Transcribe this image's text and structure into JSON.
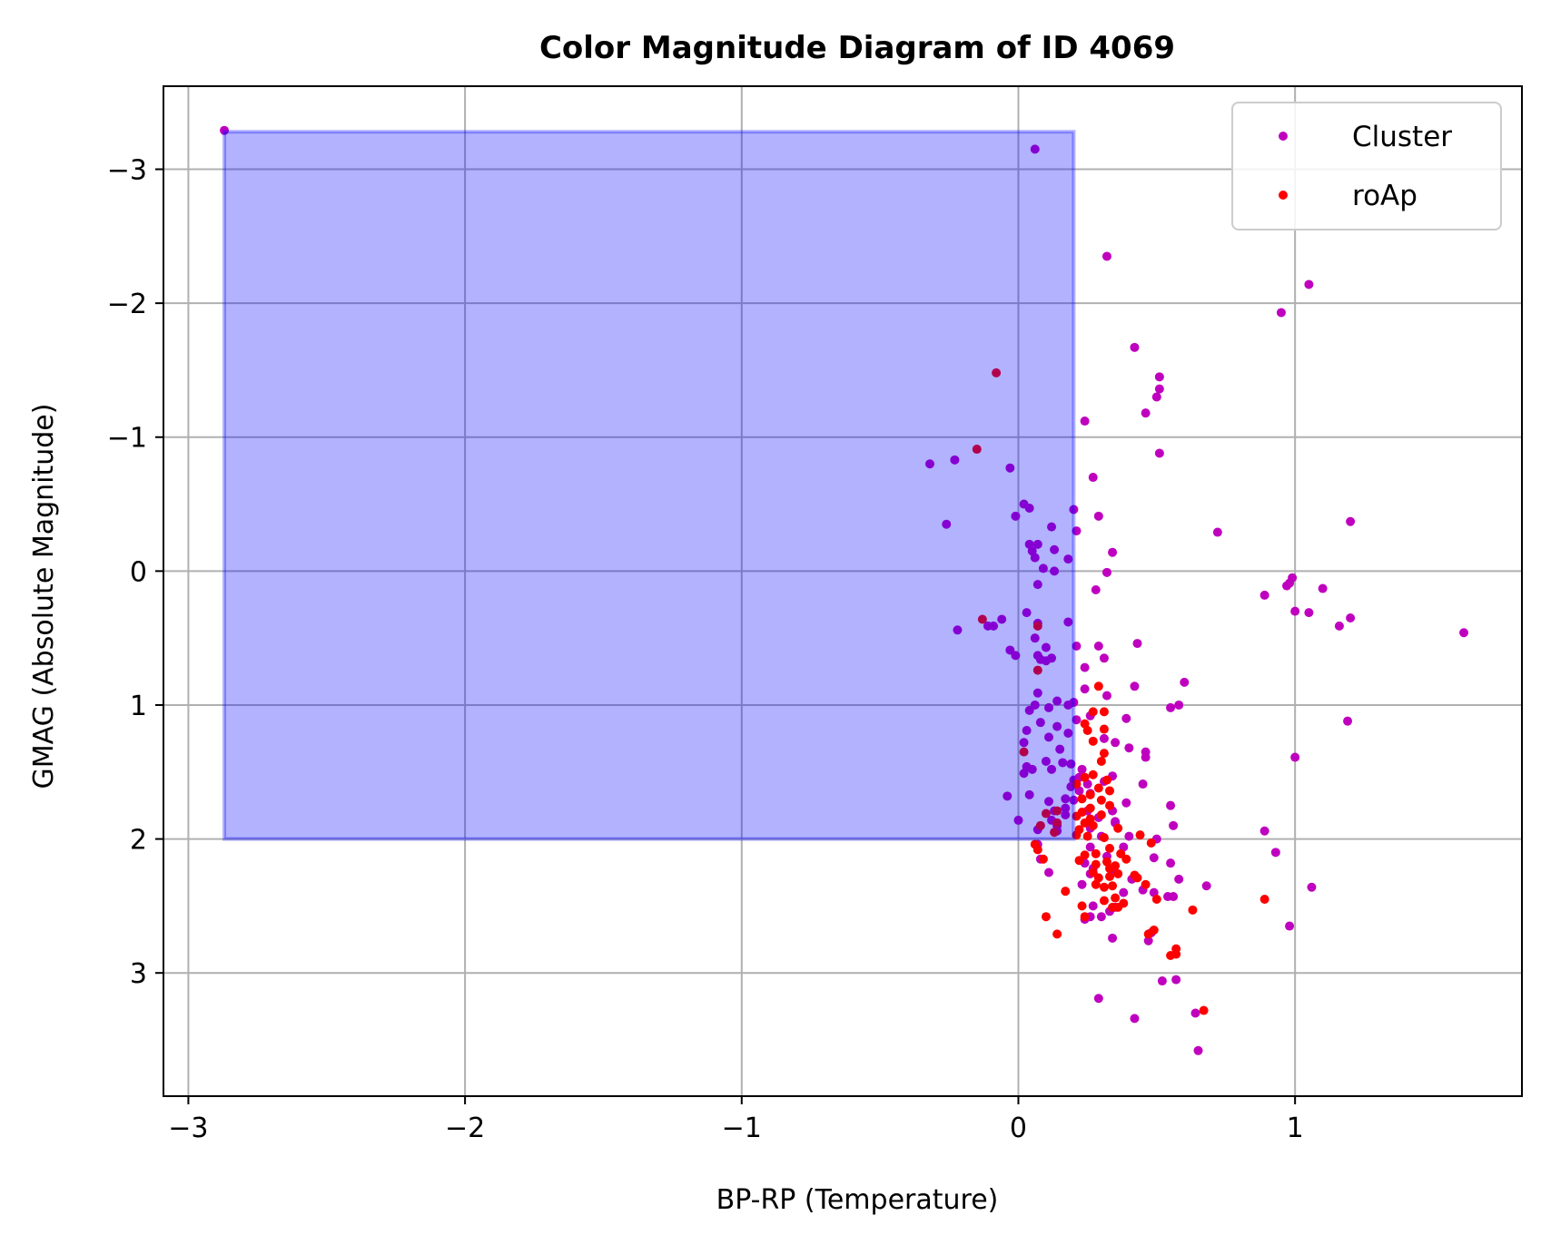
{
  "chart_data": {
    "type": "scatter",
    "title": "Color Magnitude Diagram of ID 4069",
    "xlabel": "BP-RP (Temperature)",
    "ylabel": "GMAG (Absolute Magnitude)",
    "xlim": [
      -3.09,
      1.82
    ],
    "ylim": [
      3.92,
      -3.62
    ],
    "y_inverted": true,
    "grid": true,
    "legend_position": "upper right",
    "x_ticks": [
      -3,
      -2,
      -1,
      0,
      1
    ],
    "x_tick_labels": [
      "−3",
      "−2",
      "−1",
      "0",
      "1"
    ],
    "y_ticks": [
      -3,
      -2,
      -1,
      0,
      1,
      2,
      3
    ],
    "y_tick_labels": [
      "−3",
      "−2",
      "−1",
      "0",
      "1",
      "2",
      "3"
    ],
    "region": {
      "x": [
        -2.87,
        0.2
      ],
      "y": [
        -3.28,
        2.0
      ],
      "color": "#0000ff",
      "opacity": 0.3
    },
    "series": [
      {
        "name": "Cluster",
        "color": "#bf00bf",
        "points": [
          [
            -2.87,
            -3.29
          ],
          [
            0.06,
            -3.15
          ],
          [
            0.32,
            -2.35
          ],
          [
            1.05,
            -2.14
          ],
          [
            0.95,
            -1.93
          ],
          [
            0.42,
            -1.67
          ],
          [
            0.51,
            -1.45
          ],
          [
            0.51,
            -1.36
          ],
          [
            0.5,
            -1.3
          ],
          [
            0.46,
            -1.18
          ],
          [
            0.24,
            -1.12
          ],
          [
            0.51,
            -0.88
          ],
          [
            -0.32,
            -0.8
          ],
          [
            -0.23,
            -0.83
          ],
          [
            -0.03,
            -0.77
          ],
          [
            0.27,
            -0.7
          ],
          [
            0.02,
            -0.5
          ],
          [
            -0.26,
            -0.35
          ],
          [
            0.04,
            -0.47
          ],
          [
            0.29,
            -0.41
          ],
          [
            1.2,
            -0.37
          ],
          [
            0.72,
            -0.29
          ],
          [
            0.2,
            -0.46
          ],
          [
            -0.01,
            -0.41
          ],
          [
            0.07,
            -0.2
          ],
          [
            0.04,
            -0.2
          ],
          [
            0.05,
            -0.15
          ],
          [
            0.12,
            -0.33
          ],
          [
            0.34,
            -0.14
          ],
          [
            0.13,
            -0.16
          ],
          [
            0.21,
            -0.3
          ],
          [
            0.06,
            -0.1
          ],
          [
            0.13,
            0.0
          ],
          [
            0.18,
            -0.09
          ],
          [
            0.09,
            -0.02
          ],
          [
            0.32,
            0.01
          ],
          [
            0.07,
            0.1
          ],
          [
            0.98,
            0.09
          ],
          [
            0.99,
            0.05
          ],
          [
            0.97,
            0.11
          ],
          [
            1.1,
            0.13
          ],
          [
            0.28,
            0.14
          ],
          [
            0.89,
            0.18
          ],
          [
            0.03,
            0.31
          ],
          [
            1.0,
            0.3
          ],
          [
            1.05,
            0.31
          ],
          [
            1.2,
            0.35
          ],
          [
            1.16,
            0.41
          ],
          [
            1.61,
            0.46
          ],
          [
            -0.06,
            0.36
          ],
          [
            -0.11,
            0.41
          ],
          [
            -0.09,
            0.41
          ],
          [
            0.07,
            0.39
          ],
          [
            0.18,
            0.38
          ],
          [
            -0.22,
            0.44
          ],
          [
            0.06,
            0.5
          ],
          [
            0.1,
            0.57
          ],
          [
            0.21,
            0.56
          ],
          [
            0.29,
            0.56
          ],
          [
            -0.03,
            0.59
          ],
          [
            -0.01,
            0.63
          ],
          [
            0.07,
            0.63
          ],
          [
            0.08,
            0.66
          ],
          [
            0.1,
            0.67
          ],
          [
            0.12,
            0.65
          ],
          [
            0.31,
            0.65
          ],
          [
            0.24,
            0.72
          ],
          [
            0.43,
            0.54
          ],
          [
            0.6,
            0.83
          ],
          [
            0.42,
            0.86
          ],
          [
            0.24,
            0.88
          ],
          [
            0.07,
            0.91
          ],
          [
            0.32,
            0.93
          ],
          [
            0.14,
            0.97
          ],
          [
            0.2,
            0.98
          ],
          [
            0.18,
            1.0
          ],
          [
            0.06,
            1.0
          ],
          [
            0.04,
            1.04
          ],
          [
            0.11,
            1.02
          ],
          [
            0.26,
            1.08
          ],
          [
            0.55,
            1.02
          ],
          [
            0.58,
            1.0
          ],
          [
            1.19,
            1.12
          ],
          [
            0.39,
            1.1
          ],
          [
            0.08,
            1.13
          ],
          [
            0.14,
            1.16
          ],
          [
            0.21,
            1.11
          ],
          [
            0.03,
            1.19
          ],
          [
            0.02,
            1.28
          ],
          [
            0.18,
            1.21
          ],
          [
            0.11,
            1.24
          ],
          [
            0.31,
            1.25
          ],
          [
            0.35,
            1.28
          ],
          [
            0.4,
            1.32
          ],
          [
            0.46,
            1.35
          ],
          [
            0.46,
            1.39
          ],
          [
            0.15,
            1.33
          ],
          [
            1.0,
            1.39
          ],
          [
            0.1,
            1.42
          ],
          [
            0.16,
            1.43
          ],
          [
            0.19,
            1.44
          ],
          [
            0.03,
            1.46
          ],
          [
            0.05,
            1.48
          ],
          [
            0.12,
            1.48
          ],
          [
            0.23,
            1.48
          ],
          [
            0.02,
            1.51
          ],
          [
            0.22,
            1.54
          ],
          [
            0.34,
            1.53
          ],
          [
            0.25,
            1.59
          ],
          [
            0.31,
            1.57
          ],
          [
            0.45,
            1.59
          ],
          [
            0.19,
            1.61
          ],
          [
            0.22,
            1.64
          ],
          [
            0.26,
            1.66
          ],
          [
            0.17,
            1.7
          ],
          [
            0.04,
            1.67
          ],
          [
            -0.04,
            1.68
          ],
          [
            0.11,
            1.72
          ],
          [
            0.2,
            1.71
          ],
          [
            0.39,
            1.73
          ],
          [
            0.55,
            1.75
          ],
          [
            0.13,
            1.79
          ],
          [
            0.17,
            1.77
          ],
          [
            0.25,
            1.79
          ],
          [
            0.34,
            1.79
          ],
          [
            0.17,
            1.82
          ],
          [
            0.29,
            1.84
          ],
          [
            0.35,
            1.87
          ],
          [
            0.0,
            1.86
          ],
          [
            0.12,
            1.86
          ],
          [
            0.14,
            1.9
          ],
          [
            0.26,
            1.92
          ],
          [
            0.35,
            1.88
          ],
          [
            0.56,
            1.9
          ],
          [
            0.07,
            1.93
          ],
          [
            0.14,
            1.94
          ],
          [
            0.89,
            1.94
          ],
          [
            0.3,
            1.98
          ],
          [
            0.4,
            1.98
          ],
          [
            0.5,
            2.0
          ],
          [
            0.07,
            2.04
          ],
          [
            0.26,
            2.06
          ],
          [
            0.38,
            2.06
          ],
          [
            0.93,
            2.1
          ],
          [
            0.32,
            2.13
          ],
          [
            0.49,
            2.14
          ],
          [
            0.55,
            2.18
          ],
          [
            0.08,
            2.15
          ],
          [
            0.24,
            2.18
          ],
          [
            0.27,
            2.22
          ],
          [
            0.34,
            2.25
          ],
          [
            0.11,
            2.25
          ],
          [
            0.26,
            2.26
          ],
          [
            0.41,
            2.3
          ],
          [
            0.58,
            2.3
          ],
          [
            0.23,
            2.34
          ],
          [
            0.68,
            2.35
          ],
          [
            0.45,
            2.38
          ],
          [
            1.06,
            2.36
          ],
          [
            0.49,
            2.4
          ],
          [
            0.56,
            2.43
          ],
          [
            0.54,
            2.43
          ],
          [
            0.27,
            2.5
          ],
          [
            0.35,
            2.51
          ],
          [
            0.33,
            2.54
          ],
          [
            0.26,
            2.58
          ],
          [
            0.3,
            2.58
          ],
          [
            0.24,
            2.6
          ],
          [
            0.98,
            2.65
          ],
          [
            0.34,
            2.74
          ],
          [
            0.47,
            2.76
          ],
          [
            0.52,
            3.06
          ],
          [
            0.57,
            3.05
          ],
          [
            0.29,
            3.19
          ],
          [
            0.64,
            3.3
          ],
          [
            0.42,
            3.34
          ],
          [
            0.65,
            3.58
          ],
          [
            0.48,
            2.7
          ],
          [
            0.38,
            2.4
          ],
          [
            0.2,
            1.56
          ]
        ]
      },
      {
        "name": "roAp",
        "color": "#ff0000",
        "points": [
          [
            -0.08,
            -1.48
          ],
          [
            -0.15,
            -0.91
          ],
          [
            -0.13,
            0.36
          ],
          [
            0.07,
            0.41
          ],
          [
            0.07,
            0.74
          ],
          [
            0.29,
            0.86
          ],
          [
            0.27,
            1.05
          ],
          [
            0.31,
            1.05
          ],
          [
            0.24,
            1.14
          ],
          [
            0.25,
            1.19
          ],
          [
            0.31,
            1.18
          ],
          [
            0.27,
            1.27
          ],
          [
            0.31,
            1.36
          ],
          [
            0.3,
            1.42
          ],
          [
            0.02,
            1.35
          ],
          [
            0.27,
            1.52
          ],
          [
            0.24,
            1.54
          ],
          [
            0.32,
            1.56
          ],
          [
            0.21,
            1.59
          ],
          [
            0.29,
            1.62
          ],
          [
            0.33,
            1.64
          ],
          [
            0.26,
            1.67
          ],
          [
            0.23,
            1.7
          ],
          [
            0.3,
            1.71
          ],
          [
            0.26,
            1.77
          ],
          [
            0.33,
            1.75
          ],
          [
            0.23,
            1.8
          ],
          [
            0.3,
            1.82
          ],
          [
            0.21,
            1.83
          ],
          [
            0.26,
            1.85
          ],
          [
            0.14,
            1.79
          ],
          [
            0.1,
            1.81
          ],
          [
            0.24,
            1.88
          ],
          [
            0.27,
            1.9
          ],
          [
            0.36,
            1.92
          ],
          [
            0.22,
            1.93
          ],
          [
            0.14,
            1.88
          ],
          [
            0.08,
            1.9
          ],
          [
            0.13,
            1.95
          ],
          [
            0.21,
            1.97
          ],
          [
            0.25,
            1.98
          ],
          [
            0.31,
            1.99
          ],
          [
            0.44,
            1.97
          ],
          [
            0.48,
            2.03
          ],
          [
            0.06,
            2.04
          ],
          [
            0.07,
            2.08
          ],
          [
            0.09,
            2.15
          ],
          [
            0.24,
            2.12
          ],
          [
            0.28,
            2.11
          ],
          [
            0.33,
            2.07
          ],
          [
            0.37,
            2.11
          ],
          [
            0.22,
            2.16
          ],
          [
            0.28,
            2.19
          ],
          [
            0.32,
            2.17
          ],
          [
            0.35,
            2.2
          ],
          [
            0.39,
            2.15
          ],
          [
            0.27,
            2.25
          ],
          [
            0.33,
            2.22
          ],
          [
            0.42,
            2.27
          ],
          [
            0.29,
            2.29
          ],
          [
            0.33,
            2.28
          ],
          [
            0.36,
            2.26
          ],
          [
            0.43,
            2.29
          ],
          [
            0.46,
            2.34
          ],
          [
            0.28,
            2.34
          ],
          [
            0.31,
            2.36
          ],
          [
            0.34,
            2.35
          ],
          [
            0.35,
            2.44
          ],
          [
            0.17,
            2.39
          ],
          [
            0.5,
            2.45
          ],
          [
            0.31,
            2.46
          ],
          [
            0.23,
            2.5
          ],
          [
            0.34,
            2.51
          ],
          [
            0.36,
            2.51
          ],
          [
            0.38,
            2.48
          ],
          [
            0.89,
            2.45
          ],
          [
            0.63,
            2.53
          ],
          [
            0.1,
            2.58
          ],
          [
            0.24,
            2.58
          ],
          [
            0.49,
            2.68
          ],
          [
            0.47,
            2.71
          ],
          [
            0.14,
            2.71
          ],
          [
            0.57,
            2.82
          ],
          [
            0.55,
            2.87
          ],
          [
            0.57,
            2.86
          ],
          [
            0.67,
            3.28
          ]
        ]
      }
    ]
  }
}
